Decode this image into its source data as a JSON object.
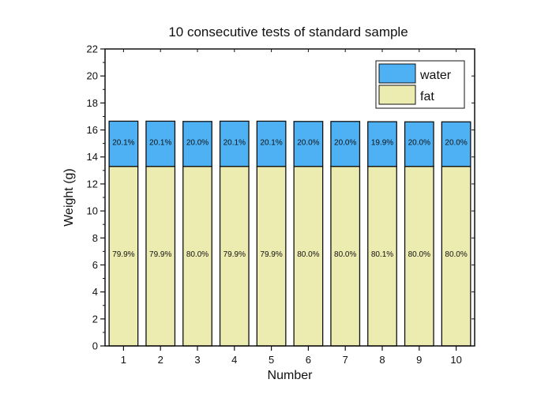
{
  "chart_data": {
    "type": "stacked-bar",
    "title": "10 consecutive tests of standard sample",
    "xlabel": "Number",
    "ylabel": "Weight (g)",
    "ylim": [
      0,
      22
    ],
    "y_ticks": [
      "0",
      "2",
      "4",
      "6",
      "8",
      "10",
      "12",
      "14",
      "16",
      "18",
      "20",
      "22"
    ],
    "categories": [
      "1",
      "2",
      "3",
      "4",
      "5",
      "6",
      "7",
      "8",
      "9",
      "10"
    ],
    "series": [
      {
        "name": "fat",
        "color": "#ecebb0",
        "values": [
          13.3,
          13.3,
          13.3,
          13.3,
          13.3,
          13.3,
          13.3,
          13.3,
          13.3,
          13.3
        ],
        "labels": [
          "79.9%",
          "79.9%",
          "80.0%",
          "79.9%",
          "79.9%",
          "80.0%",
          "80.0%",
          "80.1%",
          "80.0%",
          "80.0%"
        ]
      },
      {
        "name": "water",
        "color": "#4eb1f4",
        "values": [
          3.35,
          3.35,
          3.33,
          3.35,
          3.35,
          3.33,
          3.33,
          3.31,
          3.3,
          3.3
        ],
        "labels": [
          "20.1%",
          "20.1%",
          "20.0%",
          "20.1%",
          "20.1%",
          "20.0%",
          "20.0%",
          "19.9%",
          "20.0%",
          "20.0%"
        ]
      }
    ],
    "legend": {
      "position": "top-right",
      "entries": [
        {
          "name": "water",
          "color": "#4eb1f4"
        },
        {
          "name": "fat",
          "color": "#ecebb0"
        }
      ]
    }
  }
}
